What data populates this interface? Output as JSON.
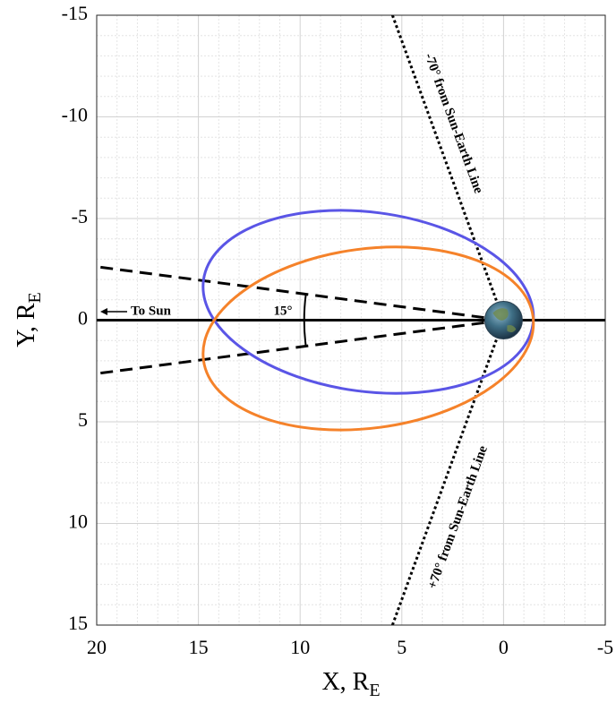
{
  "chart_data": {
    "type": "orbit",
    "xlabel": {
      "text": "X, R",
      "sub": "E"
    },
    "ylabel": {
      "text": "Y, R",
      "sub": "E"
    },
    "xlim": [
      20,
      -5
    ],
    "ylim": [
      -15,
      15
    ],
    "xticks": [
      20,
      15,
      10,
      5,
      0,
      -5
    ],
    "yticks": [
      -15,
      -10,
      -5,
      0,
      5,
      10,
      15
    ],
    "grid": true,
    "minor_grid": true,
    "ellipses": [
      {
        "color": "#5a55e6",
        "center": [
          6.65,
          -0.9
        ],
        "semi_major": 8.17,
        "semi_minor": 4.41,
        "angle": -7.5
      },
      {
        "color": "#f5822a",
        "center": [
          6.65,
          0.9
        ],
        "semi_major": 8.17,
        "semi_minor": 4.41,
        "angle": 7.5
      }
    ],
    "lines": [
      {
        "style": "solid",
        "x": [
          20,
          -5
        ],
        "y": [
          0,
          0
        ]
      },
      {
        "style": "dashed",
        "x": [
          0,
          20
        ],
        "y": [
          0,
          -2.63
        ]
      },
      {
        "style": "dashed",
        "x": [
          0,
          20
        ],
        "y": [
          0,
          2.63
        ]
      },
      {
        "style": "dotted",
        "x": [
          5.46,
          0
        ],
        "y": [
          -15,
          0
        ]
      },
      {
        "style": "dotted",
        "x": [
          5.46,
          0
        ],
        "y": [
          15,
          0
        ]
      }
    ],
    "arc": {
      "radius": 9.8,
      "from": -7.5,
      "to": 7.5
    },
    "annotations": [
      "To Sun",
      "15°",
      "-70° from Sun-Earth Line",
      "+70° from Sun-Earth Line"
    ]
  }
}
